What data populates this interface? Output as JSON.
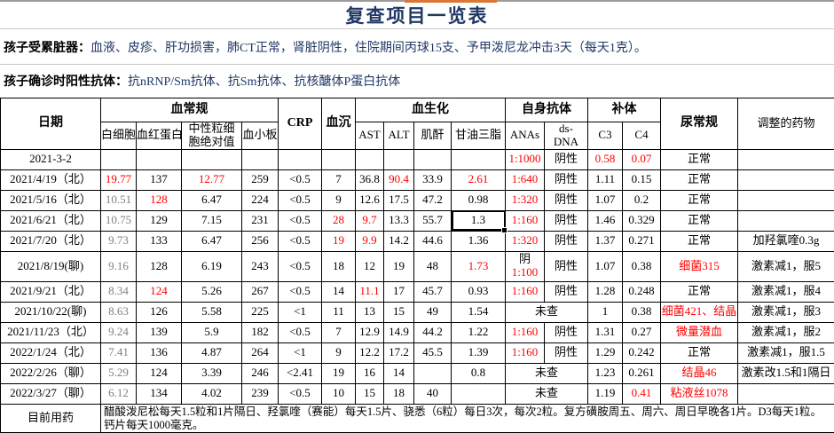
{
  "page": {
    "title": "复查项目一览表",
    "info1_label": "孩子受累脏器：",
    "info1_text": "血液、皮疹、肝功损害，肺CT正常，肾脏阴性，住院期间丙球15支、予甲泼尼龙冲击3天（每天1克）。",
    "info2_label": "孩子确诊时阳性抗体：",
    "info2_text": "抗nRNP/Sm抗体、抗Sm抗体、抗核醣体P蛋白抗体"
  },
  "colors": {
    "accent_orange": "#DB7734",
    "title_blue": "#1F3864",
    "abnormal_red": "#FF0000",
    "dim_gray": "#7F7F7F"
  },
  "table": {
    "header": {
      "date": "日期",
      "blood_routine": "血常规",
      "crp": "CRP",
      "esr": "血沉",
      "biochem": "血生化",
      "autoantibody": "自身抗体",
      "complement": "补体",
      "urine": "尿常规",
      "meds": "调整的药物"
    },
    "sub_headers": [
      "白细胞",
      "血红蛋白",
      "中性粒细胞绝对值",
      "血小板",
      "AST",
      "ALT",
      "肌酐",
      "甘油三脂",
      "ANAs",
      "ds-DNA",
      "C3",
      "C4"
    ],
    "rows": [
      {
        "date": "2021-3-2",
        "cells": [
          "",
          "",
          "",
          "",
          "",
          "",
          "",
          "",
          "",
          "",
          {
            "t": "1:1000",
            "c": "red"
          },
          "阴性",
          {
            "t": "0.58",
            "c": "red"
          },
          {
            "t": "0.07",
            "c": "red"
          },
          "正常",
          ""
        ]
      },
      {
        "date": "2021/4/19（北）",
        "cells": [
          {
            "t": "19.77",
            "c": "red"
          },
          "137",
          {
            "t": "12.77",
            "c": "red"
          },
          "259",
          "<0.5",
          "7",
          "36.8",
          {
            "t": "90.4",
            "c": "red"
          },
          "33.9",
          {
            "t": "2.61",
            "c": "red"
          },
          {
            "t": "1:640",
            "c": "red"
          },
          "阴性",
          "1.11",
          "0.15",
          "正常",
          ""
        ]
      },
      {
        "date": "2021/5/16（北）",
        "cells": [
          {
            "t": "10.51",
            "c": "gray"
          },
          {
            "t": "128",
            "c": "red"
          },
          "6.47",
          "224",
          "<0.5",
          "9",
          "12.6",
          "17.5",
          "47.2",
          "0.98",
          {
            "t": "1:320",
            "c": "red"
          },
          "阴性",
          "1.07",
          "0.2",
          "正常",
          ""
        ]
      },
      {
        "date": "2021/6/21（北）",
        "cells": [
          {
            "t": "10.75",
            "c": "gray"
          },
          "129",
          "7.15",
          "231",
          "<0.5",
          {
            "t": "28",
            "c": "red"
          },
          {
            "t": "9.7",
            "c": "red"
          },
          "13.3",
          "55.7",
          {
            "t": "1.3",
            "sel": true
          },
          {
            "t": "1:160",
            "c": "red"
          },
          "阴性",
          "1.46",
          "0.329",
          "正常",
          ""
        ]
      },
      {
        "date": "2021/7/20（北）",
        "cells": [
          {
            "t": "9.73",
            "c": "gray"
          },
          "133",
          "6.47",
          "256",
          "<0.5",
          {
            "t": "19",
            "c": "red"
          },
          {
            "t": "9.9",
            "c": "red"
          },
          "14.2",
          "44.6",
          "1.36",
          {
            "t": "1:320",
            "c": "red"
          },
          "阴性",
          "1.37",
          "0.271",
          "正常",
          "加羟氯喹0.3g"
        ]
      },
      {
        "date": "2021/8/19(聊)",
        "tall": true,
        "cells": [
          {
            "t": "9.16",
            "c": "gray"
          },
          "128",
          "6.19",
          "243",
          "<0.5",
          "18",
          "12",
          "19",
          "48",
          {
            "t": "1.73",
            "c": "red"
          },
          {
            "lines": [
              {
                "t": "阴"
              },
              {
                "t": "1:100",
                "c": "red"
              }
            ]
          },
          "阴性",
          "1.07",
          "0.38",
          {
            "t": "细菌315",
            "c": "red"
          },
          "激素减1，服5"
        ]
      },
      {
        "date": "2021/9/21（北）",
        "cells": [
          {
            "t": "8.34",
            "c": "gray"
          },
          {
            "t": "124",
            "c": "red"
          },
          "5.26",
          "267",
          "<0.5",
          "14",
          {
            "t": "11.1",
            "c": "red"
          },
          "17",
          "45.7",
          "0.93",
          {
            "t": "1:160",
            "c": "red"
          },
          "阴性",
          "1.28",
          "0.248",
          "正常",
          "激素减1，服4"
        ]
      },
      {
        "date": "2021/10/22(聊)",
        "cells": [
          {
            "t": "8.63",
            "c": "gray"
          },
          "126",
          "5.58",
          "225",
          "<1",
          "11",
          "13",
          "15",
          "49",
          "1.54",
          {
            "t": "未查",
            "span": 2
          },
          "1",
          "0.38",
          {
            "t": "细菌421、结晶",
            "c": "red"
          },
          "激素减1，服3"
        ]
      },
      {
        "date": "2021/11/23（北）",
        "cells": [
          {
            "t": "9.24",
            "c": "gray"
          },
          "139",
          "5.9",
          "182",
          "<0.5",
          "7",
          "12.9",
          "14.9",
          "44.2",
          "1.22",
          {
            "t": "1:160",
            "c": "red"
          },
          "阴性",
          "1.31",
          "0.27",
          {
            "t": "微量潜血",
            "c": "red"
          },
          "激素减1，服2"
        ]
      },
      {
        "date": "2022/1/24（北）",
        "cells": [
          {
            "t": "7.41",
            "c": "gray"
          },
          "136",
          "4.87",
          "264",
          "<1",
          "9",
          "12.2",
          "17.2",
          "45.5",
          "1.39",
          {
            "t": "1:160",
            "c": "red"
          },
          "阴性",
          "1.29",
          "0.242",
          "正常",
          "激素减1，服1.5"
        ]
      },
      {
        "date": "2022/2/26（聊）",
        "cells": [
          {
            "t": "5.29",
            "c": "gray"
          },
          "124",
          "3.39",
          "246",
          "<2.41",
          "19",
          "16",
          "14",
          "",
          "0.8",
          {
            "t": "未查",
            "span": 2
          },
          "1.23",
          "0.261",
          {
            "t": "结晶46",
            "c": "red"
          },
          "激素改1.5和1隔日"
        ]
      },
      {
        "date": "2022/3/27（聊）",
        "cells": [
          {
            "t": "6.12",
            "c": "gray"
          },
          "134",
          "4.02",
          "239",
          "<0.5",
          "10",
          "15",
          "18",
          "40",
          "",
          {
            "t": "未查",
            "span": 2
          },
          "1.19",
          {
            "t": "0.41",
            "c": "red"
          },
          {
            "t": "粘液丝1078",
            "c": "red"
          },
          ""
        ]
      }
    ],
    "footer": {
      "label": "目前用药",
      "text": "醋酸泼尼松每天1.5粒和1片隔日、羟氯喹（赛能）每天1.5片、骁悉（6粒）每日3次，每次2粒。复方磺胺周五、周六、周日早晚各1片。D3每天1粒。钙片每天1000毫克。"
    }
  }
}
